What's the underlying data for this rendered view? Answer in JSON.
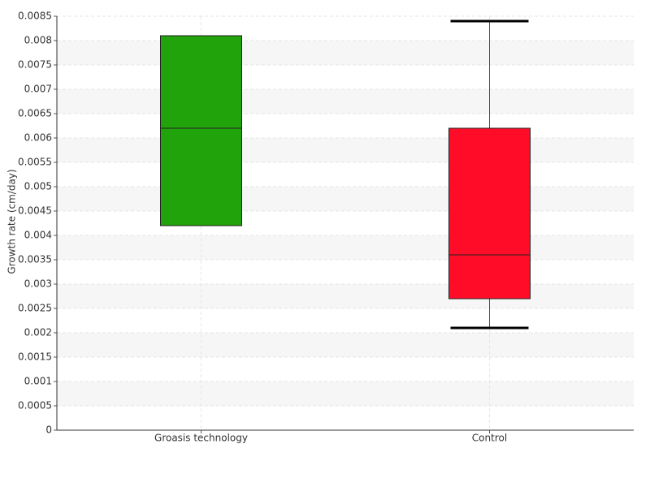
{
  "chart_data": {
    "type": "box",
    "y_label": "Growth rate (cm/day)",
    "categories": [
      "Groasis technology",
      "Control"
    ],
    "boxes": [
      {
        "q1": 0.0042,
        "median": 0.0062,
        "q3": 0.0081,
        "color": "#21a30b"
      },
      {
        "min": 0.0021,
        "q1": 0.0027,
        "median": 0.0036,
        "q3": 0.0062,
        "max": 0.0084,
        "color": "#ff0d28"
      }
    ],
    "ylim": [
      0,
      0.0085
    ],
    "yticks": [
      0,
      0.0005,
      0.001,
      0.0015,
      0.002,
      0.0025,
      0.003,
      0.0035,
      0.004,
      0.0045,
      0.005,
      0.0055,
      0.006,
      0.0065,
      0.007,
      0.0075,
      0.008,
      0.0085
    ],
    "grid": true
  }
}
